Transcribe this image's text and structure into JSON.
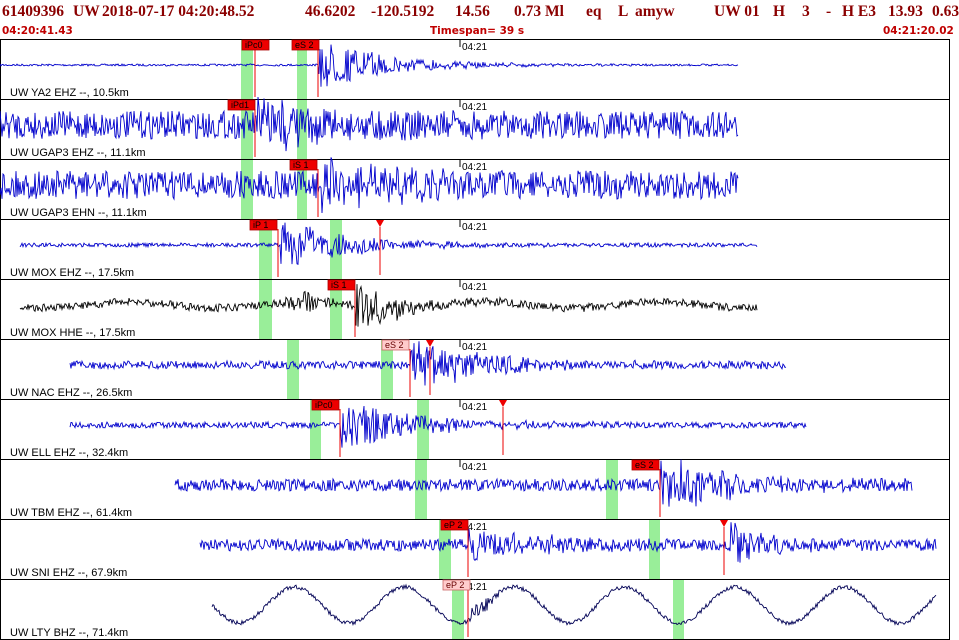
{
  "header": {
    "event_id": "61409396",
    "network": "UW",
    "datetime": "2018-07-17 04:20:48.52",
    "lat": "46.6202",
    "lon": "-120.5192",
    "depth": "14.56",
    "magnitude": "0.73 Ml",
    "etype": "eq",
    "flag": "L",
    "author": "amyw",
    "source": "UW 01",
    "quality": "H",
    "code": "3",
    "dash": "-",
    "review": "H E3",
    "dist": "13.93",
    "rms": "0.63",
    "start_time": "04:20:41.43",
    "timespan": "Timespan=  39 s",
    "end_time": "04:21:20.02"
  },
  "colors": {
    "title": "#8b0000",
    "subtitle": "#c00000",
    "trace": "#0000cc",
    "trace_alt": "#000000",
    "trace_lty": "#000055",
    "window": "#99ee99",
    "pick_red": "#ee0000",
    "pick_pink": "#ffcccc"
  },
  "minute_label": "04:21",
  "traces": [
    {
      "label": "UW YA2 EHZ --, 10.5km",
      "color": "trace",
      "picks": [
        {
          "text": "iPc0",
          "style": "red"
        },
        {
          "text": "eS 2",
          "style": "red"
        }
      ]
    },
    {
      "label": "UW UGAP3 EHZ --, 11.1km",
      "color": "trace",
      "picks": [
        {
          "text": "iPd1",
          "style": "red"
        }
      ]
    },
    {
      "label": "UW UGAP3 EHN --, 11.1km",
      "color": "trace",
      "picks": [
        {
          "text": "iS 1",
          "style": "red"
        }
      ]
    },
    {
      "label": "UW MOX EHZ --, 17.5km",
      "color": "trace",
      "picks": [
        {
          "text": "iP 1",
          "style": "red"
        }
      ]
    },
    {
      "label": "UW MOX HHE --, 17.5km",
      "color": "trace_alt",
      "picks": [
        {
          "text": "iS 1",
          "style": "red"
        }
      ]
    },
    {
      "label": "UW NAC EHZ --, 26.5km",
      "color": "trace",
      "picks": [
        {
          "text": "eS 2",
          "style": "pink"
        }
      ]
    },
    {
      "label": "UW ELL EHZ --, 32.4km",
      "color": "trace",
      "picks": [
        {
          "text": "iPc0",
          "style": "red"
        }
      ]
    },
    {
      "label": "UW TBM EHZ --, 61.4km",
      "color": "trace",
      "picks": [
        {
          "text": "eS 2",
          "style": "red"
        }
      ]
    },
    {
      "label": "UW SNI EHZ --, 67.9km",
      "color": "trace",
      "picks": [
        {
          "text": "eP 2",
          "style": "red"
        }
      ]
    },
    {
      "label": "UW LTY BHZ --, 71.4km",
      "color": "trace_lty",
      "picks": [
        {
          "text": "eP 2",
          "style": "pink"
        }
      ]
    }
  ]
}
